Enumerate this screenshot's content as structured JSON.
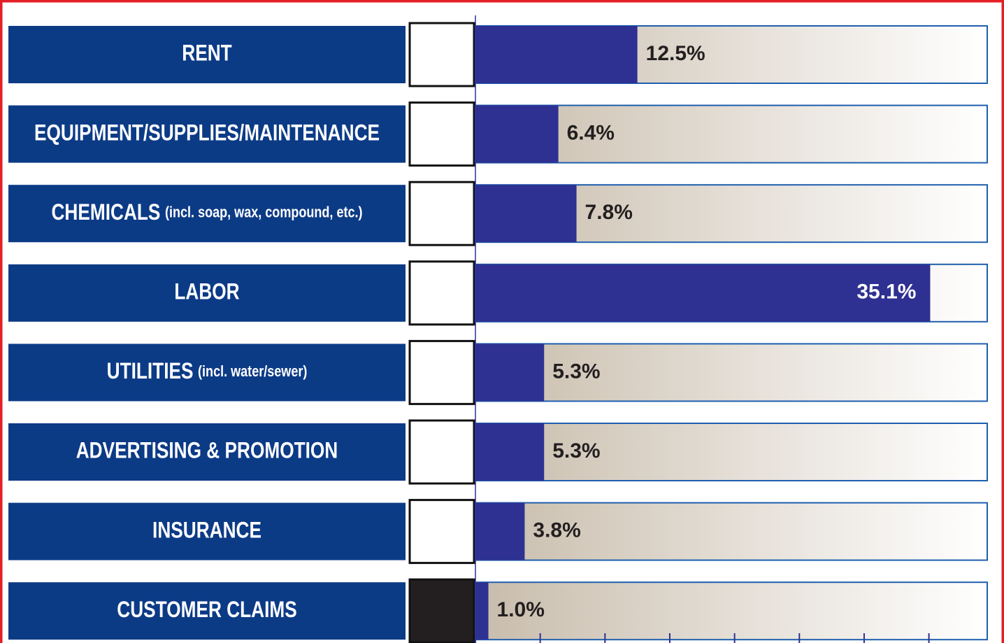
{
  "chart_data": {
    "type": "bar",
    "orientation": "horizontal",
    "categories": [
      "RENT",
      "EQUIPMENT/SUPPLIES/MAINTENANCE",
      "CHEMICALS",
      "LABOR",
      "UTILITIES",
      "ADVERTISING & PROMOTION",
      "INSURANCE",
      "CUSTOMER CLAIMS"
    ],
    "category_notes": [
      null,
      null,
      "(incl. soap, wax, compound, etc.)",
      null,
      "(incl. water/sewer)",
      null,
      null,
      null
    ],
    "values": [
      12.5,
      6.4,
      7.8,
      35.1,
      5.3,
      5.3,
      3.8,
      1.0
    ],
    "value_labels": [
      "12.5%",
      "6.4%",
      "7.8%",
      "35.1%",
      "5.3%",
      "5.3%",
      "3.8%",
      "1.0%"
    ],
    "color": "#2e3192",
    "xlim": [
      0,
      39.5
    ],
    "xticks": [
      0,
      5,
      10,
      15,
      20,
      25,
      30,
      35
    ]
  }
}
